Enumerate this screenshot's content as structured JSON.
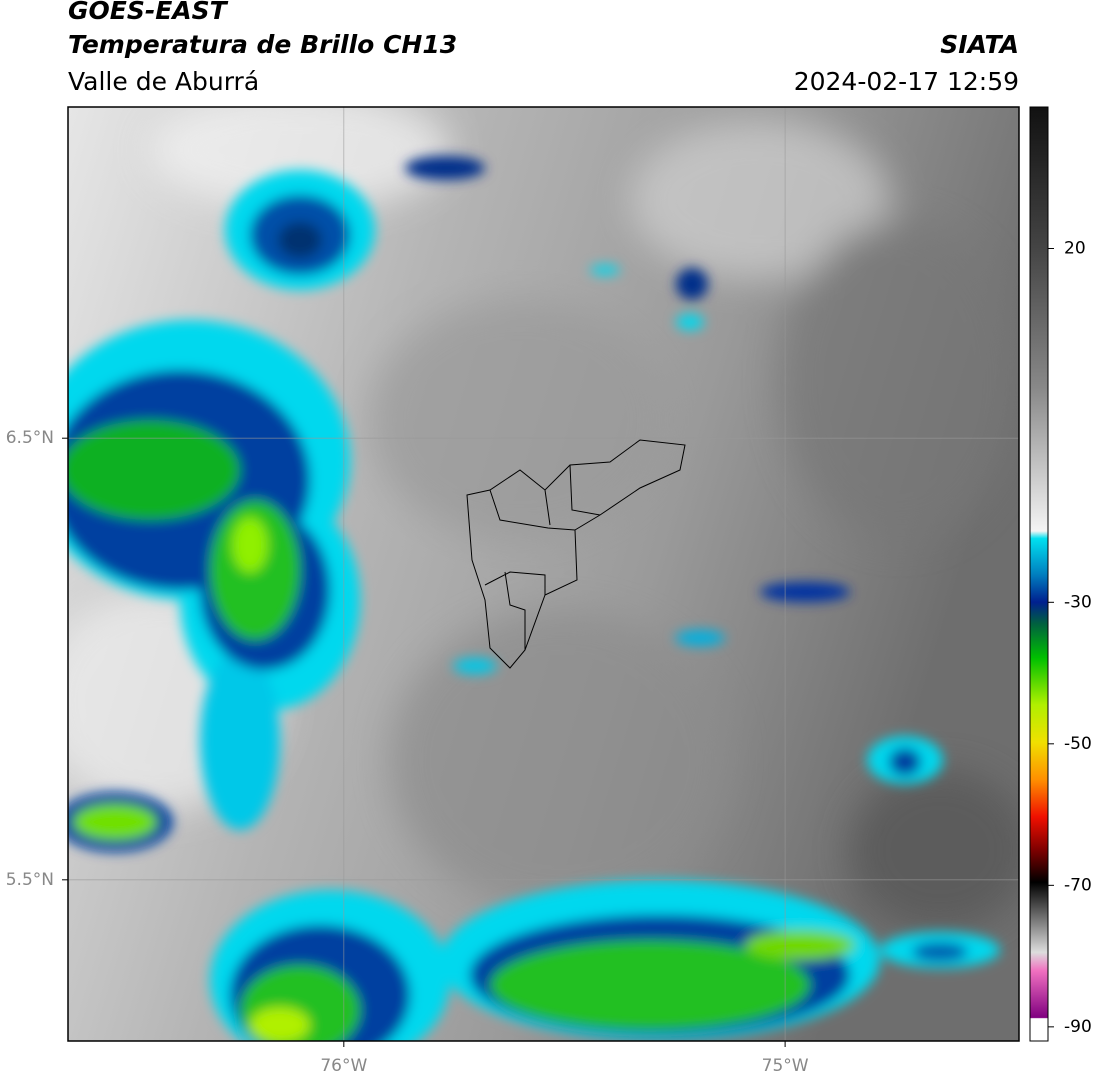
{
  "header": {
    "title": "GOES-EAST",
    "subtitle": "Temperatura de Brillo CH13",
    "region": "Valle de Aburrá",
    "source": "SIATA",
    "datetime": "2024-02-17 12:59"
  },
  "map": {
    "xlim": [
      -76.625,
      -74.47
    ],
    "ylim": [
      5.135,
      7.25
    ],
    "xticks": [
      {
        "value": -76,
        "label": "76°W"
      },
      {
        "value": -75,
        "label": "75°W"
      }
    ],
    "yticks": [
      {
        "value": 6.5,
        "label": "6.5°N"
      },
      {
        "value": 5.5,
        "label": "5.5°N"
      }
    ],
    "grid": true
  },
  "colorbar": {
    "lim": [
      -92,
      40
    ],
    "ticks": [
      20,
      -30,
      -50,
      -70,
      -90
    ]
  }
}
